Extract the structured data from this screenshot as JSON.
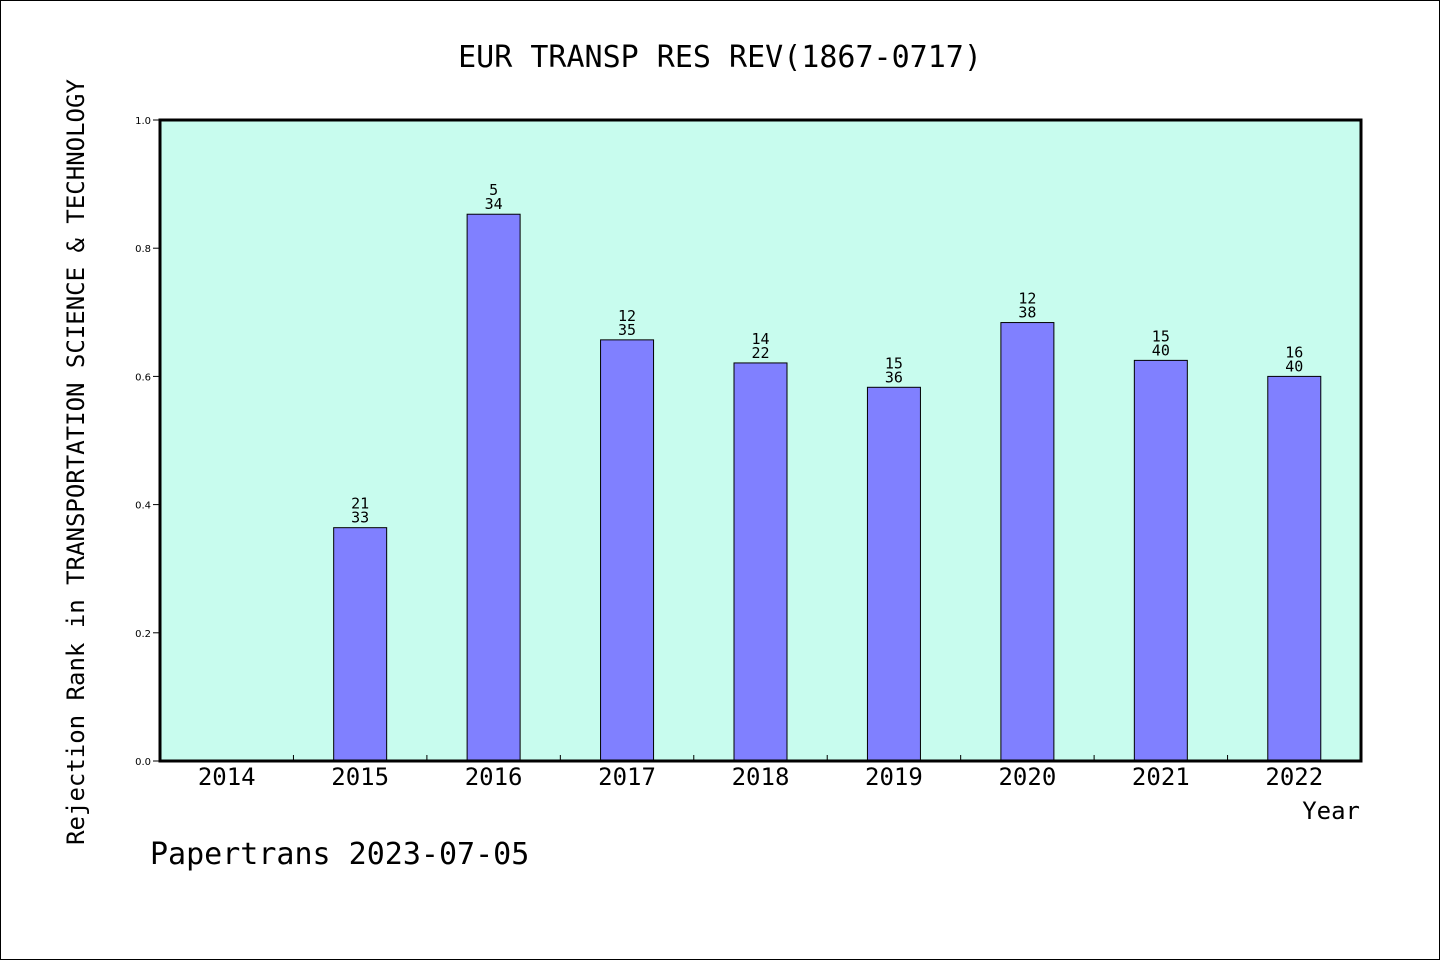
{
  "chart_data": {
    "type": "bar",
    "title": "EUR TRANSP RES REV(1867-0717)",
    "xlabel": "Year",
    "ylabel": "Rejection Rank in TRANSPORTATION SCIENCE & TECHNOLOGY",
    "ylim": [
      0,
      1.0
    ],
    "yticks": [
      "0.0",
      "0.2",
      "0.4",
      "0.6",
      "0.8",
      "1.0"
    ],
    "categories": [
      "2014",
      "2015",
      "2016",
      "2017",
      "2018",
      "2019",
      "2020",
      "2021",
      "2022"
    ],
    "values": [
      null,
      0.364,
      0.853,
      0.657,
      0.621,
      0.583,
      0.684,
      0.625,
      0.6
    ],
    "labels_top": [
      "",
      "21",
      "5",
      "12",
      "14",
      "15",
      "12",
      "15",
      "16"
    ],
    "labels_bottom": [
      "",
      "33",
      "34",
      "35",
      "22",
      "36",
      "38",
      "40",
      "40"
    ],
    "grid": false,
    "colors": {
      "plot_background": "#c8fcee",
      "bar_fill": "#8080ff",
      "bar_stroke": "#000000"
    }
  },
  "footer": "Papertrans 2023-07-05"
}
